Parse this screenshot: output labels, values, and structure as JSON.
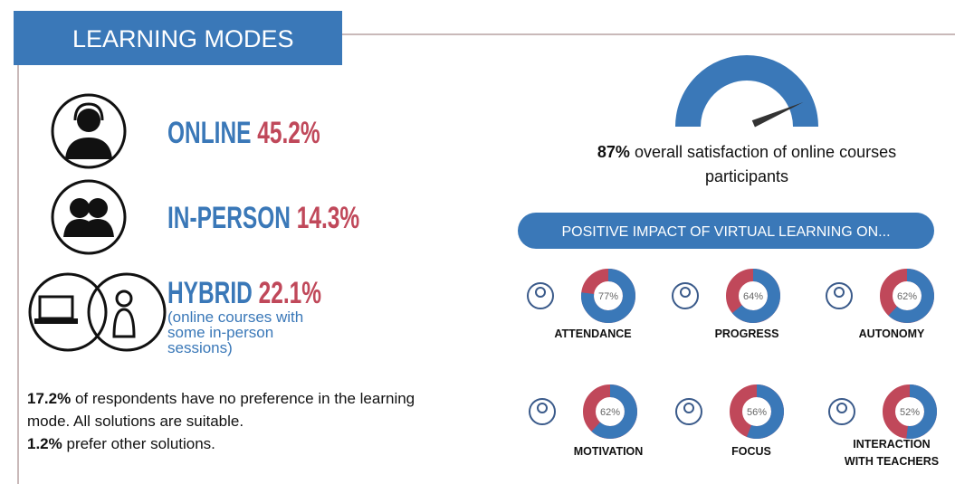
{
  "header": {
    "title": "LEARNING MODES"
  },
  "modes": [
    {
      "name": "ONLINE",
      "share": "45.2%"
    },
    {
      "name": "IN-PERSON",
      "share": "14.3%"
    },
    {
      "name": "HYBRID",
      "share": "22.1%",
      "note": "(online courses with some in-person sessions)"
    }
  ],
  "footnote": {
    "share1": "17.2%",
    "text1": "of respondents have no preference in the learning mode. All solutions are suitable.",
    "share2": "1.2%",
    "text2": "prefer other solutions."
  },
  "satisfaction": {
    "value": 87,
    "value_label": "87%",
    "text": "overall satisfaction of online courses participants"
  },
  "impact_title": "POSITIVE IMPACT OF VIRTUAL LEARNING ON...",
  "impacts": [
    {
      "label": "ATTENDANCE",
      "value": 77,
      "value_label": "77%"
    },
    {
      "label": "PROGRESS",
      "value": 64,
      "value_label": "64%"
    },
    {
      "label": "AUTONOMY",
      "value": 62,
      "value_label": "62%"
    },
    {
      "label": "MOTIVATION",
      "value": 62,
      "value_label": "62%"
    },
    {
      "label": "FOCUS",
      "value": 56,
      "value_label": "56%"
    },
    {
      "label": "INTERACTION WITH TEACHERS",
      "value": 52,
      "value_label": "52%"
    }
  ]
}
